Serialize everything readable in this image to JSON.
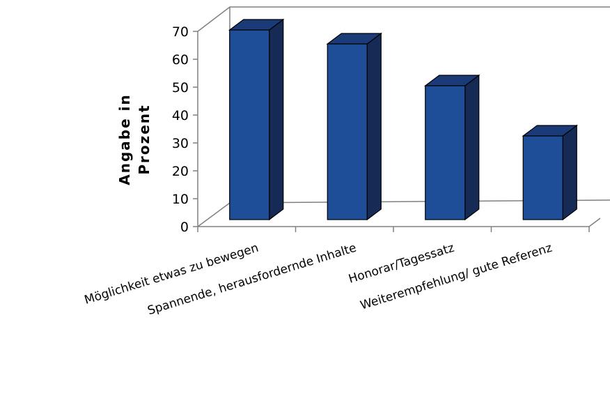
{
  "chart_data": {
    "type": "bar",
    "style": "3d-column",
    "categories": [
      "Möglichkeit etwas zu bewegen",
      "Spannende, herausfordernde Inhalte",
      "Honorar/Tagessatz",
      "Weiterempfehlung/ gute Referenz"
    ],
    "values": [
      68,
      63,
      48,
      30
    ],
    "title": "",
    "ylabel_lines": [
      "Angabe in",
      "Prozent"
    ],
    "xlabel": "",
    "ylim": [
      0,
      70
    ],
    "yticks": [
      0,
      10,
      20,
      30,
      40,
      50,
      60,
      70
    ],
    "grid": false,
    "legend": "none",
    "colors": {
      "bar_front": "#1F4E98",
      "bar_top": "#1A3A78",
      "bar_side": "#162A56",
      "bar_outline": "#000000",
      "axis": "#808080"
    }
  }
}
